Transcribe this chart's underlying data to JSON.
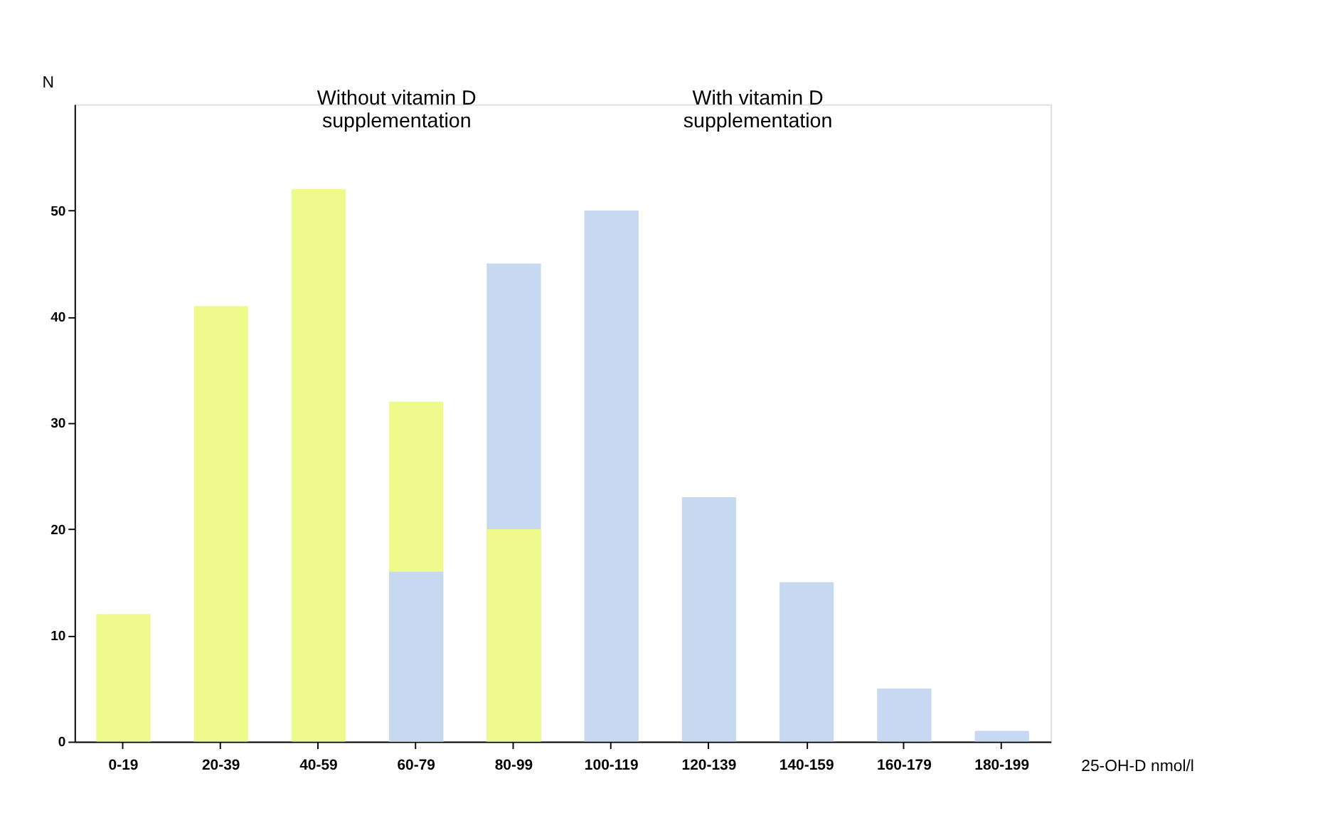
{
  "chart_data": {
    "type": "bar",
    "xlabel": "25-OH-D nmol/l",
    "ylabel": "N",
    "categories": [
      "0-19",
      "20-39",
      "40-59",
      "60-79",
      "80-99",
      "100-119",
      "120-139",
      "140-159",
      "160-179",
      "180-199"
    ],
    "series": [
      {
        "color": "#eefa8c",
        "values": [
          12,
          41,
          52,
          32,
          20,
          null,
          null,
          null,
          null,
          null
        ]
      },
      {
        "color": "#c6d9f1",
        "values": [
          null,
          null,
          null,
          16,
          45,
          50,
          23,
          15,
          5,
          1
        ]
      }
    ],
    "ylim": [
      0,
      60
    ],
    "yticks": [
      0,
      10,
      20,
      30,
      40,
      50
    ],
    "grid": false,
    "annotations": [
      "Without vitamin D\nsupplementation",
      "With vitamin D\nsupplementation"
    ]
  }
}
